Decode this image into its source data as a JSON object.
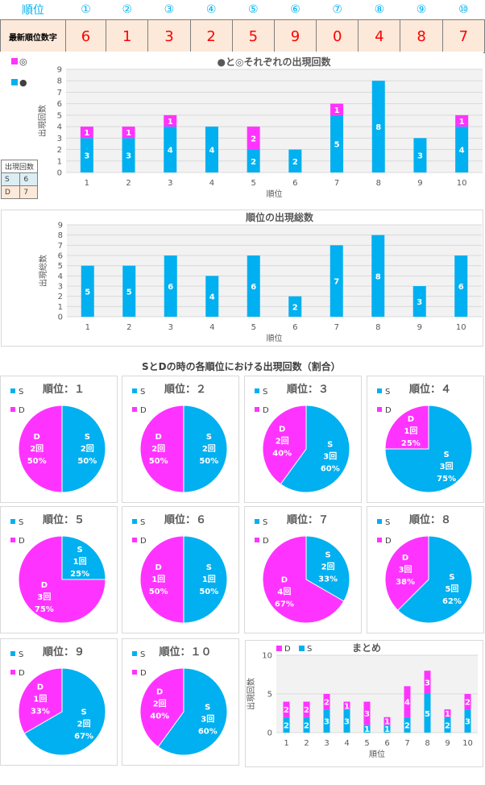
{
  "header": {
    "rank_label": "順位",
    "rank_marks": [
      "①",
      "②",
      "③",
      "④",
      "⑤",
      "⑥",
      "⑦",
      "⑧",
      "⑨",
      "⑩"
    ],
    "latest_label": "最新順位数字",
    "latest_digits": [
      "6",
      "1",
      "3",
      "2",
      "5",
      "9",
      "0",
      "4",
      "8",
      "7"
    ]
  },
  "legend_table": {
    "header": "出現回数",
    "rows": [
      {
        "key": "S",
        "val": "6"
      },
      {
        "key": "D",
        "val": "7"
      }
    ]
  },
  "section_title": "SとDの時の各順位における出現回数（割合）",
  "colors": {
    "cyan": "#00b0f0",
    "magenta": "#ff33ff",
    "grid": "#d9d9d9",
    "plot_bg": "#f2f2f2"
  },
  "chart_data": [
    {
      "type": "bar",
      "stacked": true,
      "title": "●と◎それぞれの出現回数",
      "xlabel": "順位",
      "ylabel": "出現回数",
      "legend": [
        "◎",
        "●"
      ],
      "categories": [
        "1",
        "2",
        "3",
        "4",
        "5",
        "6",
        "7",
        "8",
        "9",
        "10"
      ],
      "ylim": [
        0,
        9
      ],
      "yticks": [
        0,
        1,
        2,
        3,
        4,
        5,
        6,
        7,
        8,
        9
      ],
      "series": [
        {
          "name": "●",
          "color": "#00b0f0",
          "values": [
            3,
            3,
            4,
            4,
            2,
            2,
            5,
            8,
            3,
            4
          ]
        },
        {
          "name": "◎",
          "color": "#ff33ff",
          "values": [
            1,
            1,
            1,
            0,
            2,
            0,
            1,
            0,
            0,
            1
          ]
        }
      ]
    },
    {
      "type": "bar",
      "title": "順位の出現総数",
      "xlabel": "順位",
      "ylabel": "出現総数",
      "categories": [
        "1",
        "2",
        "3",
        "4",
        "5",
        "6",
        "7",
        "8",
        "9",
        "10"
      ],
      "ylim": [
        0,
        9
      ],
      "yticks": [
        0,
        1,
        2,
        3,
        4,
        5,
        6,
        7,
        8,
        9
      ],
      "series": [
        {
          "color": "#00b0f0",
          "values": [
            5,
            5,
            6,
            4,
            6,
            2,
            7,
            8,
            3,
            6
          ]
        }
      ]
    },
    {
      "type": "pie",
      "legend": [
        "S",
        "D"
      ],
      "pies": [
        {
          "title": "順位：１",
          "S": 2,
          "D": 2,
          "S_label": [
            "S",
            "2回",
            "50%"
          ],
          "D_label": [
            "D",
            "2回",
            "50%"
          ]
        },
        {
          "title": "順位：２",
          "S": 2,
          "D": 2,
          "S_label": [
            "S",
            "2回",
            "50%"
          ],
          "D_label": [
            "D",
            "2回",
            "50%"
          ]
        },
        {
          "title": "順位：３",
          "S": 3,
          "D": 2,
          "S_label": [
            "S",
            "3回",
            "60%"
          ],
          "D_label": [
            "D",
            "2回",
            "40%"
          ]
        },
        {
          "title": "順位：４",
          "S": 3,
          "D": 1,
          "S_label": [
            "S",
            "3回",
            "75%"
          ],
          "D_label": [
            "D",
            "1回",
            "25%"
          ]
        },
        {
          "title": "順位：５",
          "S": 1,
          "D": 3,
          "S_label": [
            "S",
            "1回",
            "25%"
          ],
          "D_label": [
            "D",
            "3回",
            "75%"
          ]
        },
        {
          "title": "順位：６",
          "S": 1,
          "D": 1,
          "S_label": [
            "S",
            "1回",
            "50%"
          ],
          "D_label": [
            "D",
            "1回",
            "50%"
          ]
        },
        {
          "title": "順位：７",
          "S": 2,
          "D": 4,
          "S_label": [
            "S",
            "2回",
            "33%"
          ],
          "D_label": [
            "D",
            "4回",
            "67%"
          ]
        },
        {
          "title": "順位：８",
          "S": 5,
          "D": 3,
          "S_label": [
            "S",
            "5回",
            "62%"
          ],
          "D_label": [
            "D",
            "3回",
            "38%"
          ]
        },
        {
          "title": "順位：９",
          "S": 2,
          "D": 1,
          "S_label": [
            "S",
            "2回",
            "67%"
          ],
          "D_label": [
            "D",
            "1回",
            "33%"
          ]
        },
        {
          "title": "順位：１０",
          "S": 3,
          "D": 2,
          "S_label": [
            "S",
            "3回",
            "60%"
          ],
          "D_label": [
            "D",
            "2回",
            "40%"
          ]
        }
      ]
    },
    {
      "type": "bar",
      "stacked": true,
      "title": "まとめ",
      "xlabel": "順位",
      "ylabel": "出現回数",
      "legend": [
        "D",
        "S"
      ],
      "categories": [
        "1",
        "2",
        "3",
        "4",
        "5",
        "6",
        "7",
        "8",
        "9",
        "10"
      ],
      "ylim": [
        0,
        10
      ],
      "yticks": [
        0,
        5,
        10
      ],
      "series": [
        {
          "name": "S",
          "color": "#00b0f0",
          "values": [
            2,
            2,
            3,
            3,
            1,
            1,
            2,
            5,
            2,
            3
          ]
        },
        {
          "name": "D",
          "color": "#ff33ff",
          "values": [
            2,
            2,
            2,
            1,
            3,
            1,
            4,
            3,
            1,
            2
          ]
        }
      ]
    }
  ]
}
